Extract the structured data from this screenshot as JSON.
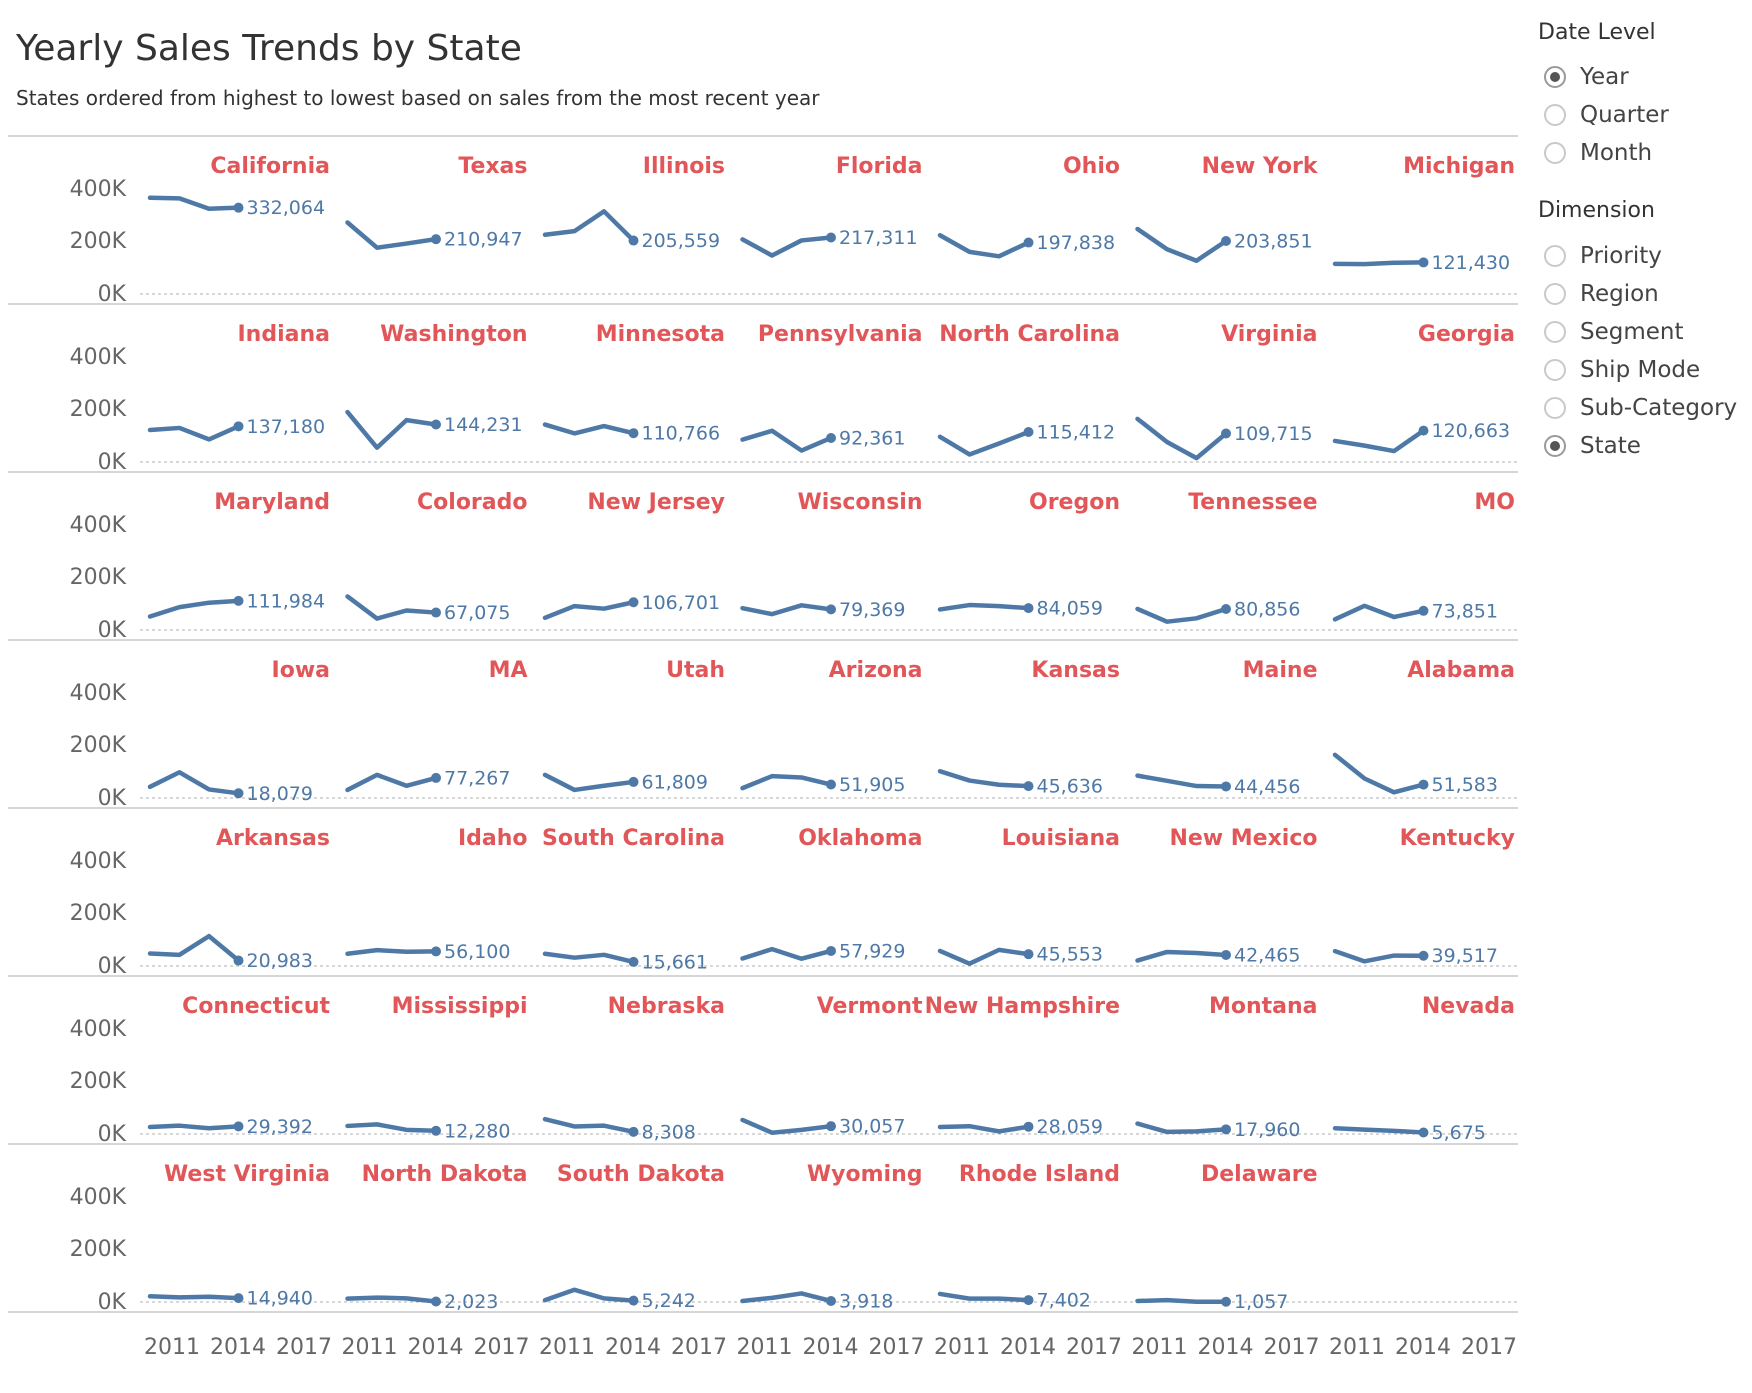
{
  "title": "Yearly Sales Trends by State",
  "subtitle": "States ordered from highest to lowest based on sales from the most recent year",
  "filters": {
    "date_level": {
      "title": "Date Level",
      "selected": "Year",
      "options": [
        "Year",
        "Quarter",
        "Month"
      ]
    },
    "dimension": {
      "title": "Dimension",
      "selected": "State",
      "options": [
        "Priority",
        "Region",
        "Segment",
        "Ship Mode",
        "Sub-Category",
        "State"
      ]
    }
  },
  "colors": {
    "line": "#4e79a7",
    "state_label": "#e15759",
    "axis_text": "#666666",
    "divider": "#c8c8c8",
    "baseline": "#b0b0b0",
    "value_label": "#4e79a7"
  },
  "chart_data": {
    "type": "line",
    "layout": "small-multiples",
    "x": [
      2011,
      2012,
      2013,
      2014
    ],
    "x_ticks": [
      2011,
      2014,
      2017
    ],
    "y_ticks": [
      "0K",
      "200K",
      "400K"
    ],
    "ylim": [
      0,
      450000
    ],
    "columns": 7,
    "series": [
      {
        "name": "California",
        "values": [
          370000,
          368000,
          328000,
          332064
        ],
        "label": "332,064"
      },
      {
        "name": "Texas",
        "values": [
          275000,
          178000,
          194000,
          210947
        ],
        "label": "210,947"
      },
      {
        "name": "Illinois",
        "values": [
          228000,
          242000,
          318000,
          205559
        ],
        "label": "205,559"
      },
      {
        "name": "Florida",
        "values": [
          210000,
          148000,
          206000,
          217311
        ],
        "label": "217,311"
      },
      {
        "name": "Ohio",
        "values": [
          226000,
          162000,
          145000,
          197838
        ],
        "label": "197,838"
      },
      {
        "name": "New York",
        "values": [
          250000,
          172000,
          128000,
          203851
        ],
        "label": "203,851"
      },
      {
        "name": "Michigan",
        "values": [
          116000,
          115000,
          120000,
          121430
        ],
        "label": "121,430"
      },
      {
        "name": "Indiana",
        "values": [
          123000,
          131000,
          87000,
          137180
        ],
        "label": "137,180"
      },
      {
        "name": "Washington",
        "values": [
          192000,
          55000,
          161000,
          144231
        ],
        "label": "144,231"
      },
      {
        "name": "Minnesota",
        "values": [
          144000,
          110000,
          138000,
          110766
        ],
        "label": "110,766"
      },
      {
        "name": "Pennsylvania",
        "values": [
          86000,
          120000,
          44000,
          92361
        ],
        "label": "92,361"
      },
      {
        "name": "North Carolina",
        "values": [
          97000,
          29000,
          71000,
          115412
        ],
        "label": "115,412"
      },
      {
        "name": "Virginia",
        "values": [
          166000,
          77000,
          15000,
          109715
        ],
        "label": "109,715"
      },
      {
        "name": "Georgia",
        "values": [
          81000,
          63000,
          42000,
          120663
        ],
        "label": "120,663"
      },
      {
        "name": "Maryland",
        "values": [
          52000,
          88000,
          105000,
          111984
        ],
        "label": "111,984"
      },
      {
        "name": "Colorado",
        "values": [
          129000,
          44000,
          75000,
          67075
        ],
        "label": "67,075"
      },
      {
        "name": "New Jersey",
        "values": [
          47000,
          92000,
          82000,
          106701
        ],
        "label": "106,701"
      },
      {
        "name": "Wisconsin",
        "values": [
          84000,
          61000,
          95000,
          79369
        ],
        "label": "79,369"
      },
      {
        "name": "Oregon",
        "values": [
          79000,
          96000,
          92000,
          84059
        ],
        "label": "84,059"
      },
      {
        "name": "Tennessee",
        "values": [
          81000,
          32000,
          45000,
          80856
        ],
        "label": "80,856"
      },
      {
        "name": "MO",
        "values": [
          41000,
          93000,
          50000,
          73851
        ],
        "label": "73,851"
      },
      {
        "name": "Iowa",
        "values": [
          43000,
          99000,
          33000,
          18079
        ],
        "label": "18,079"
      },
      {
        "name": "MA",
        "values": [
          31000,
          89000,
          47000,
          77267
        ],
        "label": "77,267"
      },
      {
        "name": "Utah",
        "values": [
          89000,
          31000,
          47000,
          61809
        ],
        "label": "61,809"
      },
      {
        "name": "Arizona",
        "values": [
          38000,
          84000,
          79000,
          51905
        ],
        "label": "51,905"
      },
      {
        "name": "Kansas",
        "values": [
          103000,
          67000,
          51000,
          45636
        ],
        "label": "45,636"
      },
      {
        "name": "Maine",
        "values": [
          86000,
          66000,
          46000,
          44456
        ],
        "label": "44,456"
      },
      {
        "name": "Alabama",
        "values": [
          166000,
          75000,
          22000,
          51583
        ],
        "label": "51,583"
      },
      {
        "name": "Arkansas",
        "values": [
          48000,
          43000,
          115000,
          20983
        ],
        "label": "20,983"
      },
      {
        "name": "Idaho",
        "values": [
          47000,
          61000,
          55000,
          56100
        ],
        "label": "56,100"
      },
      {
        "name": "South Carolina",
        "values": [
          47000,
          32000,
          43000,
          15661
        ],
        "label": "15,661"
      },
      {
        "name": "Oklahoma",
        "values": [
          29000,
          65000,
          28000,
          57929
        ],
        "label": "57,929"
      },
      {
        "name": "Louisiana",
        "values": [
          58000,
          9000,
          62000,
          45553
        ],
        "label": "45,553"
      },
      {
        "name": "New Mexico",
        "values": [
          21000,
          54000,
          50000,
          42465
        ],
        "label": "42,465"
      },
      {
        "name": "Kentucky",
        "values": [
          57000,
          18000,
          40000,
          39517
        ],
        "label": "39,517"
      },
      {
        "name": "Connecticut",
        "values": [
          27000,
          32000,
          22000,
          29392
        ],
        "label": "29,392"
      },
      {
        "name": "Mississippi",
        "values": [
          31000,
          37000,
          16000,
          12280
        ],
        "label": "12,280"
      },
      {
        "name": "Nebraska",
        "values": [
          57000,
          29000,
          32000,
          8308
        ],
        "label": "8,308"
      },
      {
        "name": "Vermont",
        "values": [
          54000,
          5000,
          16000,
          30057
        ],
        "label": "30,057"
      },
      {
        "name": "New Hampshire",
        "values": [
          27000,
          30000,
          10000,
          28059
        ],
        "label": "28,059"
      },
      {
        "name": "Montana",
        "values": [
          40000,
          8000,
          10000,
          17960
        ],
        "label": "17,960"
      },
      {
        "name": "Nevada",
        "values": [
          22000,
          17000,
          12000,
          5675
        ],
        "label": "5,675"
      },
      {
        "name": "West Virginia",
        "values": [
          22000,
          18000,
          20000,
          14940
        ],
        "label": "14,940"
      },
      {
        "name": "North Dakota",
        "values": [
          13000,
          17000,
          14000,
          2023
        ],
        "label": "2,023"
      },
      {
        "name": "South Dakota",
        "values": [
          7000,
          47000,
          14000,
          5242
        ],
        "label": "5,242"
      },
      {
        "name": "Wyoming",
        "values": [
          4000,
          16000,
          33000,
          3918
        ],
        "label": "3,918"
      },
      {
        "name": "Rhode Island",
        "values": [
          31000,
          13000,
          13000,
          7402
        ],
        "label": "7,402"
      },
      {
        "name": "Delaware",
        "values": [
          4000,
          7000,
          1000,
          1057
        ],
        "label": "1,057"
      }
    ]
  }
}
